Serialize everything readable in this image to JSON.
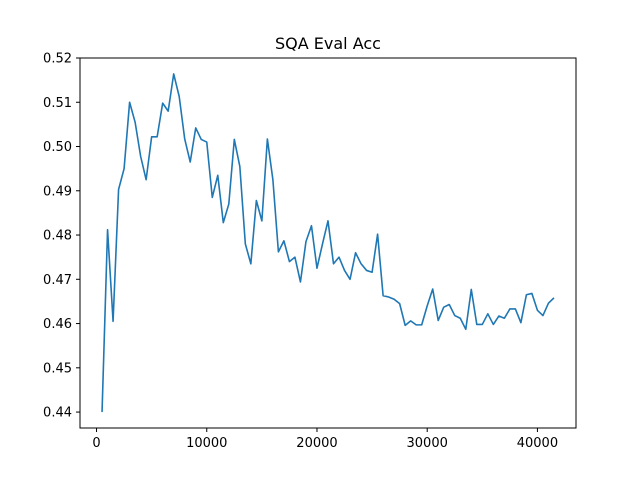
{
  "chart_data": {
    "type": "line",
    "title": "SQA Eval Acc",
    "xlabel": "",
    "ylabel": "",
    "xlim": [
      -1500,
      43500
    ],
    "ylim": [
      0.4364,
      0.52
    ],
    "xticks": [
      0,
      10000,
      20000,
      30000,
      40000
    ],
    "xtick_labels": [
      "0",
      "10000",
      "20000",
      "30000",
      "40000"
    ],
    "yticks": [
      0.44,
      0.45,
      0.46,
      0.47,
      0.48,
      0.49,
      0.5,
      0.51,
      0.52
    ],
    "ytick_labels": [
      "0.44",
      "0.45",
      "0.46",
      "0.47",
      "0.48",
      "0.49",
      "0.50",
      "0.51",
      "0.52"
    ],
    "grid": false,
    "legend": "none",
    "series": [
      {
        "color": "#1f77b4",
        "x": [
          500,
          1000,
          1500,
          2000,
          2500,
          3000,
          3500,
          4000,
          4500,
          5000,
          5500,
          6000,
          6500,
          7000,
          7500,
          8000,
          8500,
          9000,
          9500,
          10000,
          10500,
          11000,
          11500,
          12000,
          12500,
          13000,
          13500,
          14000,
          14500,
          15000,
          15500,
          16000,
          16500,
          17000,
          17500,
          18000,
          18500,
          19000,
          19500,
          20000,
          20500,
          21000,
          21500,
          22000,
          22500,
          23000,
          23500,
          24000,
          24500,
          25000,
          25500,
          26000,
          26500,
          27000,
          27500,
          28000,
          28500,
          29000,
          29500,
          30000,
          30500,
          31000,
          31500,
          32000,
          32500,
          33000,
          33500,
          34000,
          34500,
          35000,
          35500,
          36000,
          36500,
          37000,
          37500,
          38000,
          38500,
          39000,
          39500,
          40000,
          40500,
          41000,
          41500
        ],
        "y": [
          0.44,
          0.4812,
          0.4605,
          0.4903,
          0.495,
          0.51,
          0.5055,
          0.4978,
          0.4925,
          0.5022,
          0.5022,
          0.5098,
          0.508,
          0.5164,
          0.5113,
          0.5017,
          0.4965,
          0.5042,
          0.5016,
          0.501,
          0.4885,
          0.4935,
          0.4828,
          0.487,
          0.5016,
          0.4955,
          0.478,
          0.4735,
          0.4878,
          0.4832,
          0.5017,
          0.4925,
          0.4762,
          0.4787,
          0.474,
          0.475,
          0.4694,
          0.4785,
          0.4821,
          0.4725,
          0.478,
          0.4832,
          0.4735,
          0.475,
          0.472,
          0.47,
          0.476,
          0.4735,
          0.472,
          0.4716,
          0.4802,
          0.4663,
          0.466,
          0.4655,
          0.4645,
          0.4596,
          0.4606,
          0.4597,
          0.4597,
          0.464,
          0.4678,
          0.4607,
          0.4637,
          0.4643,
          0.4618,
          0.4612,
          0.4587,
          0.4677,
          0.4598,
          0.4598,
          0.4622,
          0.4598,
          0.4617,
          0.4612,
          0.4633,
          0.4633,
          0.4602,
          0.4665,
          0.4668,
          0.463,
          0.4618,
          0.4646,
          0.4658
        ]
      }
    ]
  }
}
